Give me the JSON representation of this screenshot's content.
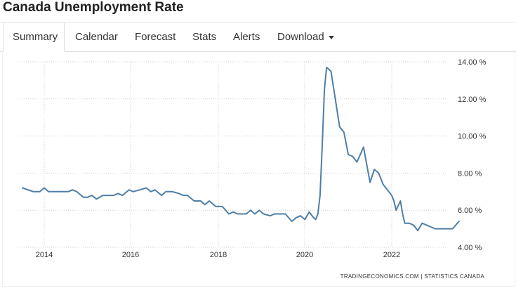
{
  "page": {
    "title": "Canada Unemployment Rate"
  },
  "tabs": [
    {
      "label": "Summary",
      "active": true
    },
    {
      "label": "Calendar"
    },
    {
      "label": "Forecast"
    },
    {
      "label": "Stats"
    },
    {
      "label": "Alerts"
    },
    {
      "label": "Download"
    }
  ],
  "source_text": "TRADINGECONOMICS.COM  |  STATISTICS CANADA",
  "colors": {
    "line": "#4d7fa8",
    "grid": "#cfcfcf"
  },
  "chart_data": {
    "type": "line",
    "x_tick_labels": [
      "2014",
      "2016",
      "2018",
      "2020",
      "2022"
    ],
    "y_tick_labels": [
      "4.00 %",
      "6.00 %",
      "8.00 %",
      "10.00 %",
      "12.00 %",
      "14.00 %"
    ],
    "ylim": [
      4,
      14
    ],
    "grid": true,
    "series": [
      {
        "points": [
          [
            2013.5,
            7.2
          ],
          [
            2013.75,
            7.0
          ],
          [
            2013.9,
            7.0
          ],
          [
            2014.0,
            7.2
          ],
          [
            2014.1,
            7.0
          ],
          [
            2014.4,
            7.0
          ],
          [
            2014.55,
            7.0
          ],
          [
            2014.65,
            7.1
          ],
          [
            2014.75,
            7.0
          ],
          [
            2014.9,
            6.7
          ],
          [
            2015.0,
            6.7
          ],
          [
            2015.1,
            6.8
          ],
          [
            2015.2,
            6.6
          ],
          [
            2015.35,
            6.8
          ],
          [
            2015.6,
            6.8
          ],
          [
            2015.7,
            6.9
          ],
          [
            2015.8,
            6.8
          ],
          [
            2015.95,
            7.1
          ],
          [
            2016.05,
            7.0
          ],
          [
            2016.2,
            7.1
          ],
          [
            2016.35,
            7.2
          ],
          [
            2016.45,
            7.0
          ],
          [
            2016.55,
            7.1
          ],
          [
            2016.7,
            6.8
          ],
          [
            2016.8,
            7.0
          ],
          [
            2016.95,
            7.0
          ],
          [
            2017.1,
            6.9
          ],
          [
            2017.2,
            6.8
          ],
          [
            2017.3,
            6.8
          ],
          [
            2017.45,
            6.5
          ],
          [
            2017.6,
            6.5
          ],
          [
            2017.7,
            6.3
          ],
          [
            2017.8,
            6.5
          ],
          [
            2017.95,
            6.2
          ],
          [
            2018.1,
            6.2
          ],
          [
            2018.25,
            5.8
          ],
          [
            2018.35,
            5.9
          ],
          [
            2018.45,
            5.8
          ],
          [
            2018.65,
            5.8
          ],
          [
            2018.75,
            6.0
          ],
          [
            2018.85,
            5.8
          ],
          [
            2018.95,
            6.0
          ],
          [
            2019.05,
            5.8
          ],
          [
            2019.2,
            5.7
          ],
          [
            2019.3,
            5.8
          ],
          [
            2019.45,
            5.8
          ],
          [
            2019.55,
            5.8
          ],
          [
            2019.7,
            5.4
          ],
          [
            2019.8,
            5.6
          ],
          [
            2019.9,
            5.7
          ],
          [
            2020.0,
            5.5
          ],
          [
            2020.1,
            5.9
          ],
          [
            2020.2,
            5.6
          ],
          [
            2020.25,
            5.5
          ],
          [
            2020.3,
            5.8
          ],
          [
            2020.35,
            6.8
          ],
          [
            2020.4,
            9.5
          ],
          [
            2020.45,
            12.5
          ],
          [
            2020.5,
            13.7
          ],
          [
            2020.6,
            13.5
          ],
          [
            2020.7,
            12.0
          ],
          [
            2020.8,
            10.5
          ],
          [
            2020.9,
            10.2
          ],
          [
            2021.0,
            9.0
          ],
          [
            2021.1,
            8.9
          ],
          [
            2021.2,
            8.6
          ],
          [
            2021.35,
            9.4
          ],
          [
            2021.5,
            7.5
          ],
          [
            2021.6,
            8.2
          ],
          [
            2021.7,
            8.0
          ],
          [
            2021.8,
            7.4
          ],
          [
            2021.9,
            7.1
          ],
          [
            2022.0,
            6.8
          ],
          [
            2022.05,
            6.5
          ],
          [
            2022.1,
            6.0
          ],
          [
            2022.2,
            6.5
          ],
          [
            2022.25,
            5.8
          ],
          [
            2022.3,
            5.3
          ],
          [
            2022.4,
            5.3
          ],
          [
            2022.5,
            5.2
          ],
          [
            2022.6,
            4.9
          ],
          [
            2022.7,
            5.3
          ],
          [
            2022.8,
            5.2
          ],
          [
            2022.9,
            5.1
          ],
          [
            2023.0,
            5.0
          ],
          [
            2023.25,
            5.0
          ],
          [
            2023.4,
            5.0
          ],
          [
            2023.55,
            5.4
          ]
        ]
      }
    ]
  }
}
